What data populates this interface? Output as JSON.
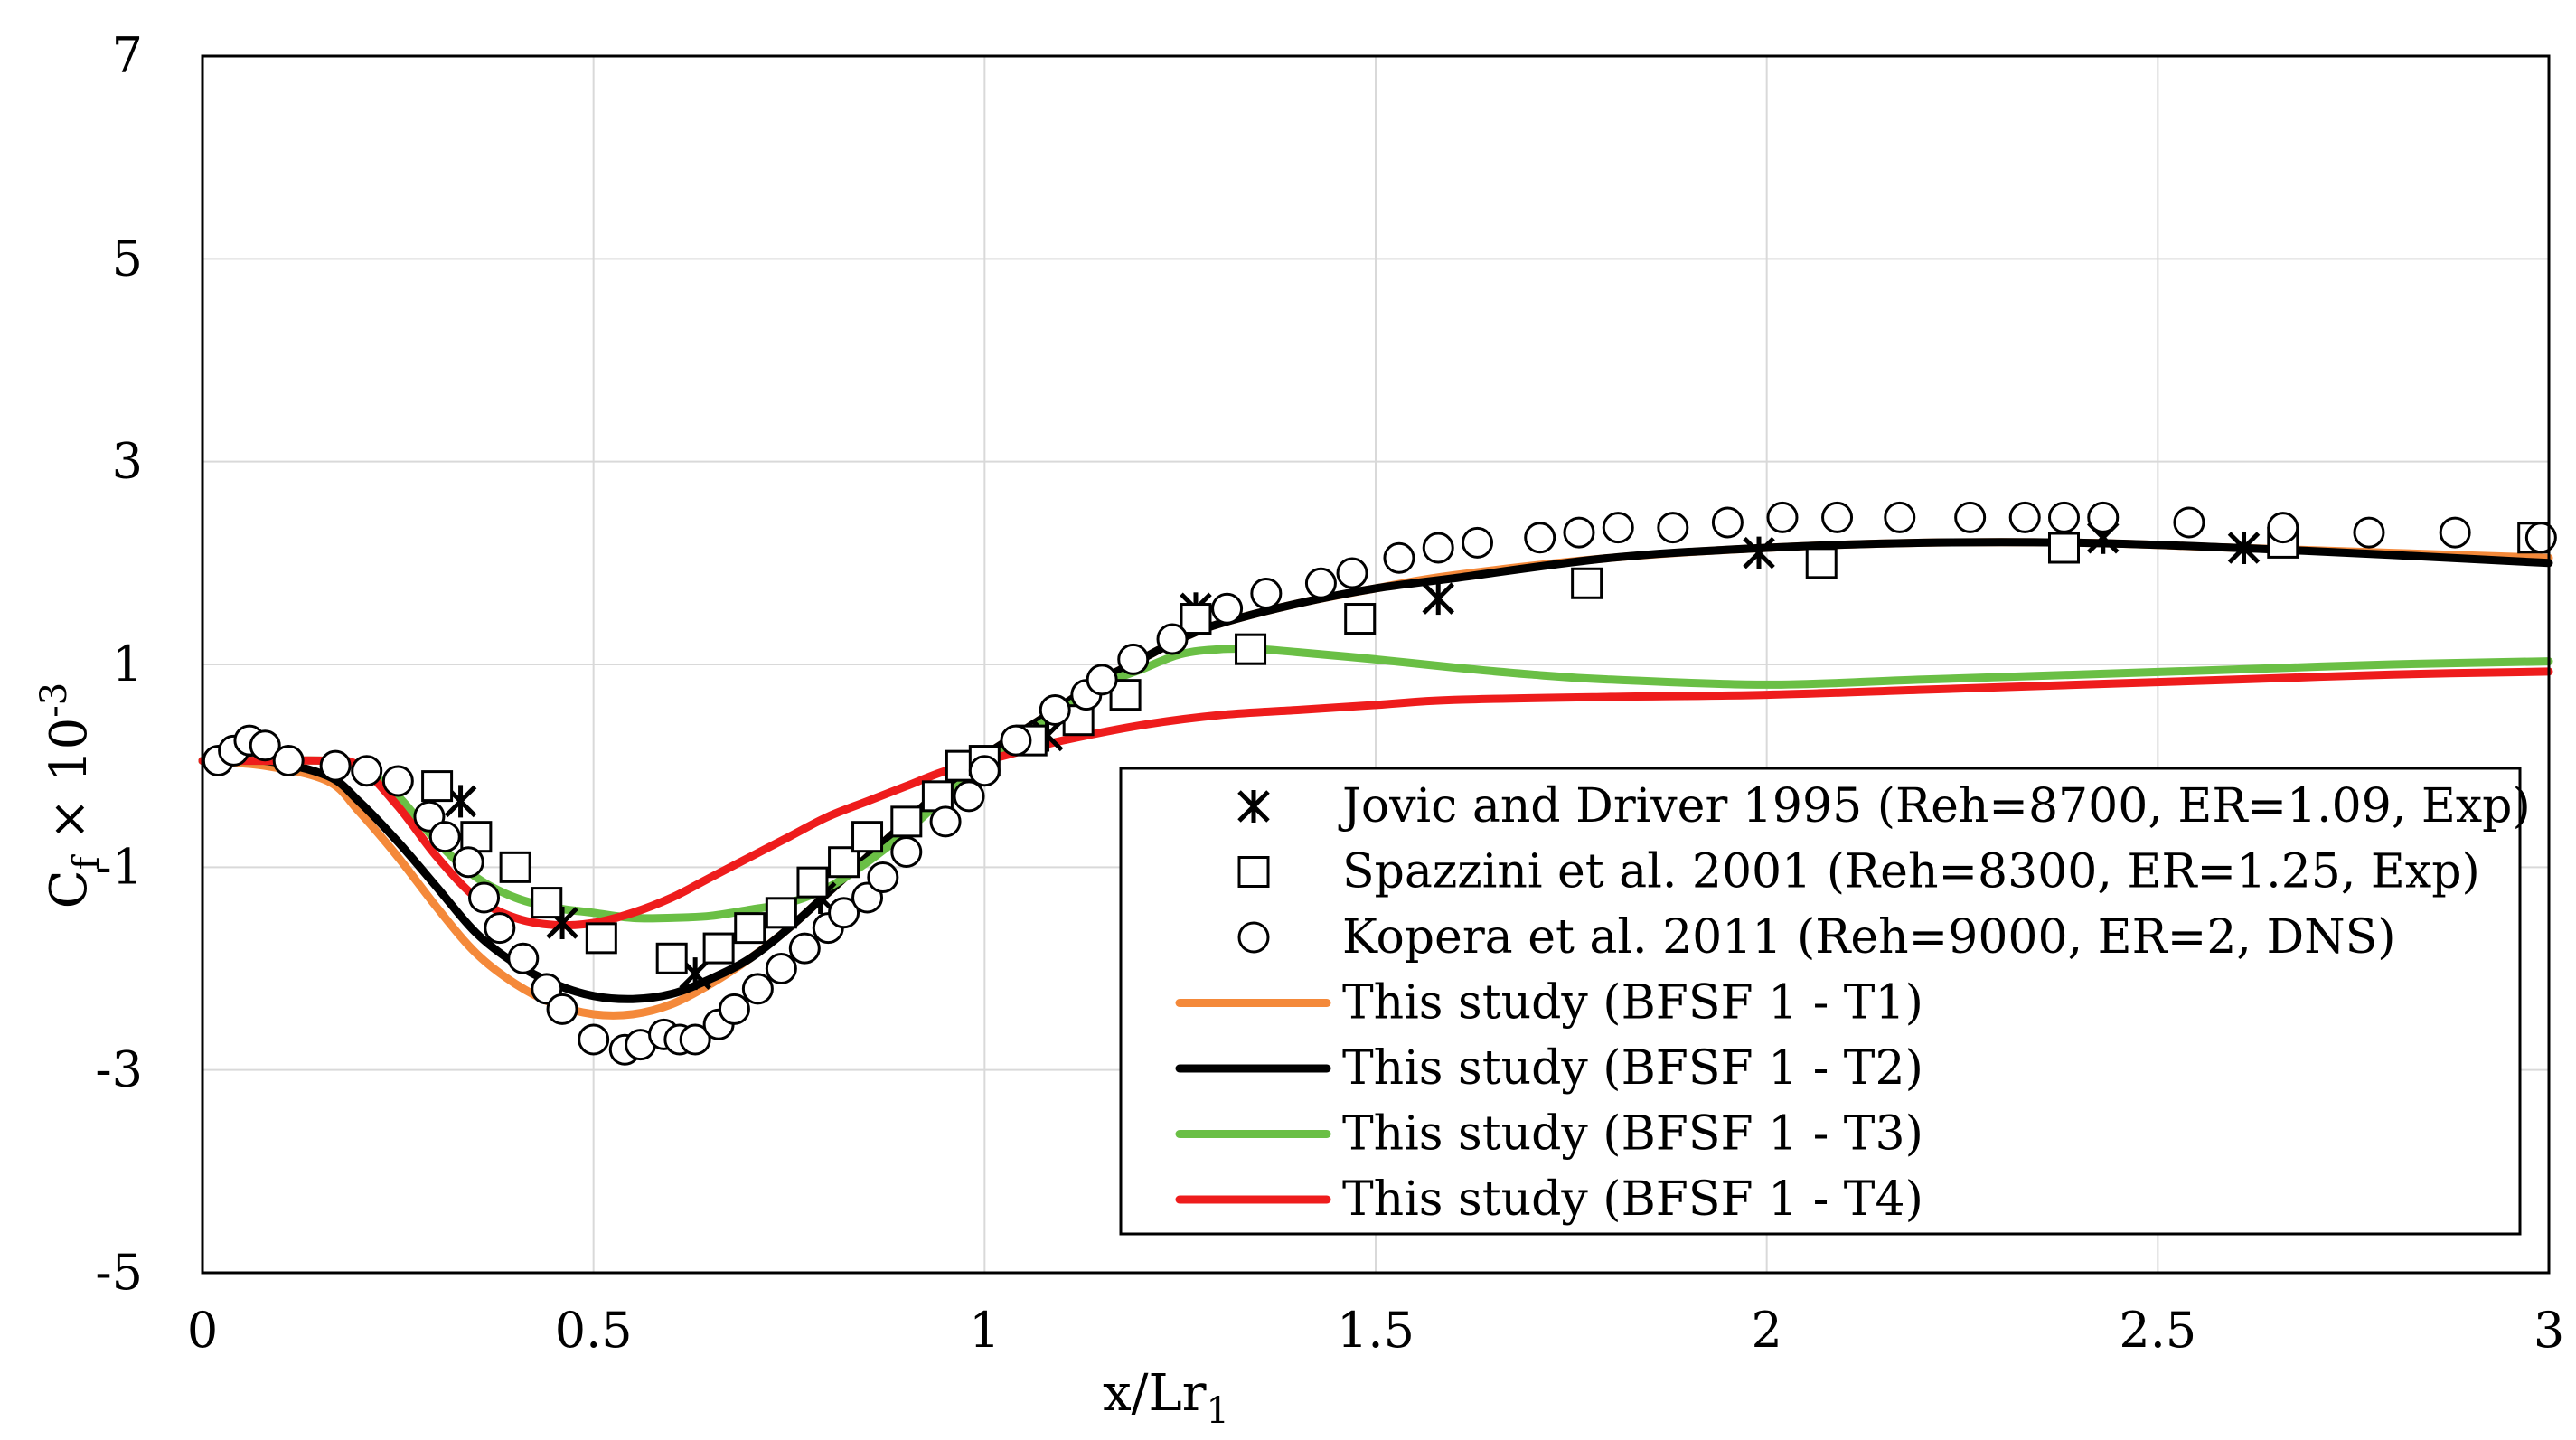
{
  "chart_data": {
    "type": "line",
    "title": "",
    "xlabel": "x/Lr",
    "xlabel_sub": "1",
    "ylabel": "C",
    "ylabel_sub": "f",
    "ylabel_suffix": " × 10",
    "ylabel_sup": "-3",
    "xlim": [
      0,
      3
    ],
    "ylim": [
      -5,
      7
    ],
    "xticks": [
      0,
      0.5,
      1,
      1.5,
      2,
      2.5,
      3
    ],
    "xtick_labels": [
      "0",
      "0.5",
      "1",
      "1.5",
      "2",
      "2.5",
      "3"
    ],
    "yticks": [
      -5,
      -3,
      -1,
      1,
      3,
      5,
      7
    ],
    "ytick_labels": [
      "-5",
      "-3",
      "-1",
      "1",
      "3",
      "5",
      "7"
    ],
    "grid": true,
    "legend_position": "lower-right",
    "series": [
      {
        "name": "Jovic and Driver 1995 (Reh=8700, ER=1.09, Exp)",
        "kind": "scatter",
        "marker": "asterisk",
        "color": "#000000",
        "x": [
          0.33,
          0.46,
          0.63,
          0.79,
          1.08,
          1.27,
          1.58,
          1.99,
          2.43,
          2.61
        ],
        "y": [
          -0.35,
          -1.55,
          -2.05,
          -1.3,
          0.3,
          1.55,
          1.65,
          2.1,
          2.25,
          2.15
        ]
      },
      {
        "name": "Spazzini et al. 2001 (Reh=8300, ER=1.25, Exp)",
        "kind": "scatter",
        "marker": "square",
        "color": "#000000",
        "x": [
          0.3,
          0.35,
          0.4,
          0.44,
          0.51,
          0.6,
          0.66,
          0.7,
          0.74,
          0.78,
          0.82,
          0.85,
          0.9,
          0.94,
          0.97,
          1.0,
          1.06,
          1.12,
          1.18,
          1.27,
          1.34,
          1.48,
          1.77,
          2.07,
          2.38,
          2.66,
          2.98
        ],
        "y": [
          -0.2,
          -0.7,
          -1.0,
          -1.35,
          -1.7,
          -1.9,
          -1.8,
          -1.6,
          -1.45,
          -1.15,
          -0.95,
          -0.7,
          -0.55,
          -0.3,
          0.0,
          0.05,
          0.25,
          0.45,
          0.7,
          1.45,
          1.15,
          1.45,
          1.8,
          2.0,
          2.15,
          2.2,
          2.25
        ]
      },
      {
        "name": "Kopera et al. 2011 (Reh=9000, ER=2, DNS)",
        "kind": "scatter",
        "marker": "circle",
        "color": "#000000",
        "x": [
          0.02,
          0.04,
          0.06,
          0.08,
          0.11,
          0.17,
          0.21,
          0.25,
          0.29,
          0.31,
          0.34,
          0.36,
          0.38,
          0.41,
          0.44,
          0.46,
          0.5,
          0.54,
          0.56,
          0.59,
          0.61,
          0.63,
          0.66,
          0.68,
          0.71,
          0.74,
          0.77,
          0.8,
          0.82,
          0.85,
          0.87,
          0.9,
          0.95,
          0.98,
          1.0,
          1.04,
          1.09,
          1.13,
          1.15,
          1.19,
          1.24,
          1.31,
          1.36,
          1.43,
          1.47,
          1.53,
          1.58,
          1.63,
          1.71,
          1.76,
          1.81,
          1.88,
          1.95,
          2.02,
          2.09,
          2.17,
          2.26,
          2.33,
          2.38,
          2.43,
          2.54,
          2.66,
          2.77,
          2.88,
          2.99
        ],
        "y": [
          0.05,
          0.15,
          0.25,
          0.2,
          0.05,
          0.0,
          -0.05,
          -0.15,
          -0.5,
          -0.7,
          -0.95,
          -1.3,
          -1.6,
          -1.9,
          -2.2,
          -2.4,
          -2.7,
          -2.8,
          -2.75,
          -2.65,
          -2.7,
          -2.7,
          -2.55,
          -2.4,
          -2.2,
          -2.0,
          -1.8,
          -1.6,
          -1.45,
          -1.3,
          -1.1,
          -0.85,
          -0.55,
          -0.3,
          -0.05,
          0.25,
          0.55,
          0.7,
          0.85,
          1.05,
          1.25,
          1.55,
          1.7,
          1.8,
          1.9,
          2.05,
          2.15,
          2.2,
          2.25,
          2.3,
          2.35,
          2.35,
          2.4,
          2.45,
          2.45,
          2.45,
          2.45,
          2.45,
          2.45,
          2.45,
          2.4,
          2.35,
          2.3,
          2.3,
          2.25
        ]
      },
      {
        "name": "This study (BFSF 1 - T1)",
        "kind": "line",
        "color": "#f4893a",
        "x": [
          0.0,
          0.08,
          0.16,
          0.2,
          0.25,
          0.3,
          0.35,
          0.4,
          0.45,
          0.5,
          0.55,
          0.6,
          0.65,
          0.7,
          0.75,
          0.8,
          0.85,
          0.9,
          0.95,
          1.0,
          1.05,
          1.1,
          1.15,
          1.2,
          1.25,
          1.3,
          1.4,
          1.5,
          1.6,
          1.8,
          2.0,
          2.2,
          2.4,
          2.6,
          2.8,
          3.0
        ],
        "y": [
          0.05,
          0.0,
          -0.15,
          -0.45,
          -0.9,
          -1.4,
          -1.85,
          -2.15,
          -2.35,
          -2.45,
          -2.45,
          -2.35,
          -2.15,
          -1.9,
          -1.6,
          -1.25,
          -0.9,
          -0.55,
          -0.2,
          0.1,
          0.35,
          0.6,
          0.85,
          1.05,
          1.25,
          1.4,
          1.6,
          1.75,
          1.88,
          2.05,
          2.15,
          2.2,
          2.2,
          2.15,
          2.1,
          2.05
        ]
      },
      {
        "name": "This study (BFSF 1 - T2)",
        "kind": "line",
        "color": "#000000",
        "x": [
          0.0,
          0.08,
          0.16,
          0.2,
          0.25,
          0.3,
          0.35,
          0.4,
          0.45,
          0.5,
          0.55,
          0.6,
          0.65,
          0.7,
          0.75,
          0.8,
          0.85,
          0.9,
          0.95,
          1.0,
          1.05,
          1.1,
          1.15,
          1.2,
          1.25,
          1.3,
          1.4,
          1.5,
          1.6,
          1.8,
          2.0,
          2.2,
          2.4,
          2.6,
          2.8,
          3.0
        ],
        "y": [
          0.05,
          0.05,
          -0.1,
          -0.35,
          -0.75,
          -1.2,
          -1.65,
          -1.95,
          -2.15,
          -2.27,
          -2.3,
          -2.25,
          -2.1,
          -1.9,
          -1.6,
          -1.25,
          -0.9,
          -0.55,
          -0.2,
          0.1,
          0.35,
          0.6,
          0.85,
          1.05,
          1.25,
          1.4,
          1.6,
          1.75,
          1.85,
          2.05,
          2.15,
          2.2,
          2.2,
          2.15,
          2.08,
          2.0
        ]
      },
      {
        "name": "This study (BFSF 1 - T3)",
        "kind": "line",
        "color": "#6abf45",
        "x": [
          0.0,
          0.08,
          0.16,
          0.2,
          0.25,
          0.3,
          0.35,
          0.4,
          0.45,
          0.5,
          0.55,
          0.6,
          0.65,
          0.7,
          0.75,
          0.8,
          0.85,
          0.9,
          0.95,
          1.0,
          1.05,
          1.1,
          1.15,
          1.2,
          1.25,
          1.3,
          1.35,
          1.4,
          1.5,
          1.6,
          1.7,
          1.8,
          2.0,
          2.2,
          2.4,
          2.6,
          2.8,
          3.0
        ],
        "y": [
          0.05,
          0.05,
          0.05,
          0.0,
          -0.3,
          -0.75,
          -1.1,
          -1.3,
          -1.4,
          -1.45,
          -1.5,
          -1.5,
          -1.48,
          -1.42,
          -1.35,
          -1.2,
          -0.95,
          -0.65,
          -0.3,
          0.0,
          0.3,
          0.55,
          0.8,
          0.95,
          1.1,
          1.15,
          1.15,
          1.12,
          1.05,
          0.97,
          0.9,
          0.85,
          0.8,
          0.85,
          0.9,
          0.95,
          1.0,
          1.03
        ]
      },
      {
        "name": "This study (BFSF 1 - T4)",
        "kind": "line",
        "color": "#ee1c1c",
        "x": [
          0.0,
          0.08,
          0.16,
          0.2,
          0.25,
          0.3,
          0.35,
          0.4,
          0.45,
          0.5,
          0.55,
          0.6,
          0.65,
          0.7,
          0.75,
          0.8,
          0.85,
          0.9,
          0.95,
          1.0,
          1.05,
          1.1,
          1.2,
          1.3,
          1.4,
          1.5,
          1.6,
          1.8,
          2.0,
          2.2,
          2.4,
          2.6,
          2.8,
          3.0
        ],
        "y": [
          0.05,
          0.05,
          0.05,
          0.0,
          -0.4,
          -0.9,
          -1.3,
          -1.5,
          -1.57,
          -1.55,
          -1.45,
          -1.3,
          -1.1,
          -0.9,
          -0.7,
          -0.5,
          -0.35,
          -0.2,
          -0.05,
          0.05,
          0.15,
          0.25,
          0.4,
          0.5,
          0.55,
          0.6,
          0.65,
          0.68,
          0.7,
          0.75,
          0.8,
          0.85,
          0.9,
          0.93
        ]
      }
    ]
  }
}
